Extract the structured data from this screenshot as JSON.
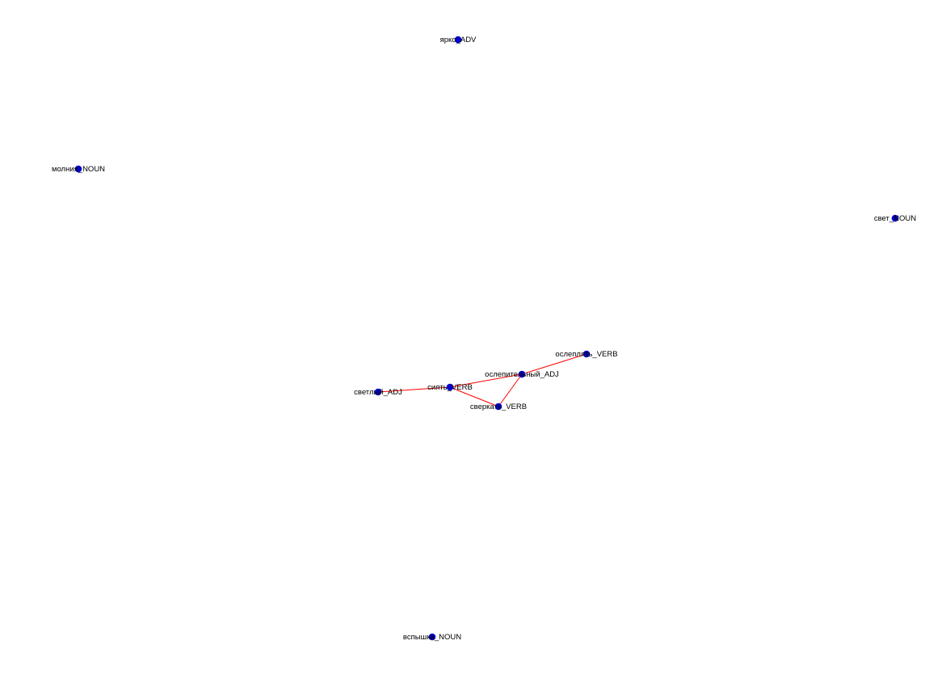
{
  "graph": {
    "node_color": "#0000cc",
    "edge_color": "#ff0000",
    "nodes": [
      {
        "id": "yarko",
        "label": "ярко_ADV"
      },
      {
        "id": "molniya",
        "label": "молния_NOUN"
      },
      {
        "id": "svet",
        "label": "свет_NOUN"
      },
      {
        "id": "osleplyat",
        "label": "ослеплять_VERB"
      },
      {
        "id": "oslepitelny",
        "label": "ослепительный_ADJ"
      },
      {
        "id": "siyat",
        "label": "сиять_VERB"
      },
      {
        "id": "svetly",
        "label": "светлый_ADJ"
      },
      {
        "id": "sverkat",
        "label": "сверкать_VERB"
      },
      {
        "id": "vspyshka",
        "label": "вспышка_NOUN"
      }
    ],
    "edges": [
      {
        "source": "svetly",
        "target": "siyat"
      },
      {
        "source": "siyat",
        "target": "oslepitelny"
      },
      {
        "source": "siyat",
        "target": "sverkat"
      },
      {
        "source": "oslepitelny",
        "target": "sverkat"
      },
      {
        "source": "oslepitelny",
        "target": "osleplyat"
      }
    ]
  }
}
